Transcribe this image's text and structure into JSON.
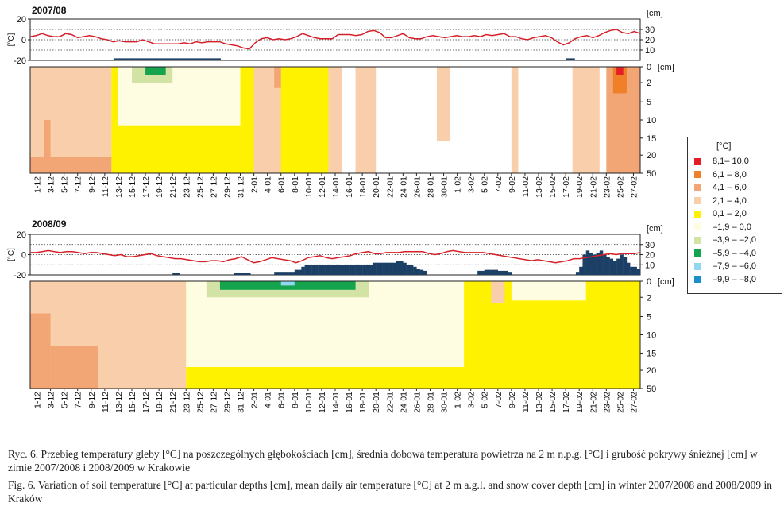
{
  "panels": [
    {
      "title": "2007/08",
      "air_temp": [
        3,
        4,
        6,
        4,
        3,
        3,
        6,
        5,
        2,
        3,
        4,
        3,
        1,
        0,
        -2,
        -1,
        -2,
        -2,
        -2,
        0,
        -2,
        -4,
        -4,
        -4,
        -4,
        -4,
        -3,
        -4,
        -2,
        -3,
        -2,
        -2,
        -2,
        -4,
        -5,
        -6,
        -8,
        -9,
        -3,
        1,
        2,
        0,
        1,
        0,
        1,
        3,
        6,
        4,
        2,
        1,
        1,
        1,
        5,
        5,
        5,
        4,
        5,
        8,
        9,
        7,
        2,
        2,
        4,
        6,
        2,
        1,
        1,
        3,
        4,
        3,
        2,
        3,
        4,
        3,
        3,
        4,
        3,
        5,
        4,
        5,
        6,
        3,
        3,
        1,
        0,
        2,
        3,
        4,
        2,
        -2,
        -5,
        -3,
        1,
        3,
        4,
        2,
        4,
        7,
        9,
        10,
        7,
        6,
        8,
        6
      ],
      "snow_cm": [
        0,
        0,
        0,
        0,
        0,
        0,
        0,
        0,
        0,
        0,
        0,
        0,
        0,
        0,
        0,
        0,
        0,
        0,
        0,
        0,
        0,
        0,
        0,
        0,
        0,
        0,
        0,
        0,
        2,
        2,
        2,
        2,
        2,
        2,
        2,
        2,
        2,
        2,
        2,
        2,
        2,
        2,
        2,
        2,
        2,
        2,
        2,
        2,
        2,
        2,
        2,
        2,
        2,
        2,
        2,
        2,
        2,
        2,
        2,
        2,
        2,
        2,
        2,
        2,
        0,
        0,
        0,
        0,
        0,
        0,
        0,
        0,
        0,
        0,
        0,
        0,
        0,
        0,
        0,
        0,
        0,
        0,
        0,
        0,
        0,
        0,
        0,
        0,
        0,
        0,
        0,
        0,
        0,
        0,
        0,
        0,
        0,
        0,
        0,
        0,
        0,
        0,
        0,
        0,
        0,
        0,
        0,
        0,
        0,
        0,
        0,
        0,
        0,
        0,
        0,
        0,
        0,
        0,
        0,
        0,
        0,
        0,
        0,
        0,
        0,
        0,
        0,
        0,
        0,
        0,
        0,
        0,
        0,
        0,
        0,
        0,
        0,
        0,
        0,
        0,
        0,
        0,
        0,
        0,
        0,
        0,
        0,
        0,
        0,
        0,
        0,
        0,
        0,
        0,
        0,
        0,
        0,
        0,
        0,
        0,
        0,
        0,
        0,
        0,
        0,
        0,
        0,
        0,
        0,
        0,
        0,
        0,
        0,
        0,
        0,
        0,
        0,
        0,
        0,
        0,
        2,
        2,
        2,
        0,
        0,
        0,
        0,
        0,
        0,
        0,
        0,
        0,
        0,
        0,
        0,
        0,
        0,
        0,
        0,
        0,
        0,
        0,
        0,
        0,
        0
      ]
    },
    {
      "title": "2008/09",
      "air_temp": [
        2,
        2,
        3,
        4,
        3,
        2,
        3,
        3,
        2,
        1,
        2,
        2,
        1,
        0,
        -1,
        0,
        -2,
        -2,
        -1,
        0,
        1,
        -1,
        -2,
        -3,
        -4,
        -4,
        -5,
        -6,
        -7,
        -7,
        -6,
        -6,
        -7,
        -5,
        -4,
        -2,
        -5,
        -8,
        -7,
        -5,
        -3,
        -4,
        -5,
        -6,
        -8,
        -6,
        -3,
        -2,
        -1,
        -3,
        -4,
        -3,
        -2,
        -1,
        1,
        2,
        3,
        1,
        1,
        2,
        2,
        2,
        3,
        3,
        3,
        3,
        1,
        0,
        1,
        3,
        4,
        3,
        2,
        2,
        2,
        2,
        1,
        0,
        -1,
        -2,
        -3,
        -4,
        -5,
        -6,
        -5,
        -6,
        -7,
        -8,
        -7,
        -6,
        -4,
        -4,
        -3,
        -2,
        -1,
        0,
        1,
        0,
        1,
        1,
        1,
        2
      ],
      "snow_cm": [
        0,
        0,
        0,
        0,
        0,
        0,
        0,
        0,
        0,
        0,
        0,
        0,
        0,
        0,
        0,
        0,
        0,
        0,
        0,
        0,
        0,
        0,
        0,
        0,
        0,
        0,
        0,
        0,
        0,
        0,
        0,
        0,
        0,
        0,
        0,
        0,
        0,
        0,
        0,
        0,
        0,
        0,
        2,
        2,
        0,
        0,
        0,
        0,
        0,
        0,
        0,
        0,
        0,
        0,
        0,
        0,
        0,
        0,
        0,
        0,
        2,
        2,
        2,
        2,
        2,
        0,
        0,
        0,
        0,
        0,
        0,
        0,
        3,
        3,
        3,
        3,
        3,
        3,
        5,
        5,
        8,
        10,
        10,
        10,
        10,
        10,
        10,
        10,
        10,
        10,
        10,
        10,
        10,
        10,
        10,
        10,
        10,
        10,
        10,
        10,
        10,
        12,
        12,
        12,
        12,
        12,
        12,
        12,
        14,
        14,
        12,
        10,
        10,
        8,
        6,
        5,
        4,
        0,
        0,
        0,
        0,
        0,
        0,
        0,
        0,
        0,
        0,
        0,
        0,
        0,
        0,
        0,
        4,
        4,
        5,
        5,
        5,
        5,
        4,
        4,
        4,
        3,
        0,
        0,
        0,
        0,
        0,
        0,
        0,
        0,
        0,
        0,
        0,
        0,
        0,
        0,
        0,
        0,
        0,
        0,
        0,
        3,
        8,
        20,
        24,
        22,
        20,
        22,
        24,
        20,
        18,
        16,
        14,
        16,
        20,
        18,
        12,
        8,
        8,
        6
      ]
    }
  ],
  "axes": {
    "temp_ticks": [
      "20",
      "0",
      "-20"
    ],
    "temp_label": "[°C]",
    "snow_ticks": [
      "30",
      "20",
      "10"
    ],
    "snow_unit": "[cm]",
    "depth_ticks": [
      "0",
      "2",
      "5",
      "10",
      "15",
      "20",
      "50"
    ],
    "depth_unit": "[cm]",
    "date_labels": [
      "1-12",
      "3-12",
      "5-12",
      "7-12",
      "9-12",
      "11-12",
      "13-12",
      "15-12",
      "17-12",
      "19-12",
      "21-12",
      "23-12",
      "25-12",
      "27-12",
      "29-12",
      "31-12",
      "2-01",
      "4-01",
      "6-01",
      "8-01",
      "10-01",
      "12-01",
      "14-01",
      "16-01",
      "18-01",
      "20-01",
      "22-01",
      "24-01",
      "26-01",
      "28-01",
      "30-01",
      "1-02",
      "3-02",
      "5-02",
      "7-02",
      "9-02",
      "11-02",
      "13-02",
      "15-02",
      "17-02",
      "19-02",
      "21-02",
      "23-02",
      "25-02",
      "27-02"
    ]
  },
  "legend": {
    "title": "[°C]",
    "entries": [
      {
        "label": "8,1– 10,0",
        "color": "#e31e24"
      },
      {
        "label": "6,1 – 8,0",
        "color": "#f07f2a"
      },
      {
        "label": "4,1 – 6,0",
        "color": "#f3a675"
      },
      {
        "label": "2,1 – 4,0",
        "color": "#f8ceab"
      },
      {
        "label": "0,1 – 2,0",
        "color": "#fff200"
      },
      {
        "label": "–1,9 – 0,0",
        "color": "#fffde1"
      },
      {
        "label": "–3,9 – –2,0",
        "color": "#d3e3a5"
      },
      {
        "label": "–5,9 – –4,0",
        "color": "#16a34d"
      },
      {
        "label": "–7,9 – –6,0",
        "color": "#8fd8f0"
      },
      {
        "label": "–9,9 – –8,0",
        "color": "#1b8fc9"
      }
    ]
  },
  "colors": {
    "air_line": "#d62029",
    "snow_bar": "#1c3f66"
  },
  "chart_data": [
    {
      "type": "heatmap",
      "title": "2007/08",
      "x_label_ticks": [
        "1-12",
        "3-12",
        "5-12",
        "7-12",
        "9-12",
        "11-12",
        "13-12",
        "15-12",
        "17-12",
        "19-12",
        "21-12",
        "23-12",
        "25-12",
        "27-12",
        "29-12",
        "31-12",
        "2-01",
        "4-01",
        "6-01",
        "8-01",
        "10-01",
        "12-01",
        "14-01",
        "16-01",
        "18-01",
        "20-01",
        "22-01",
        "24-01",
        "26-01",
        "28-01",
        "30-01",
        "1-02",
        "3-02",
        "5-02",
        "7-02",
        "9-02",
        "11-02",
        "13-02",
        "15-02",
        "17-02",
        "19-02",
        "21-02",
        "23-02",
        "25-02",
        "27-02"
      ],
      "y_depth_cm": [
        0,
        2,
        5,
        10,
        15,
        20,
        50
      ],
      "temp_axis_ylim": [
        -20,
        20
      ],
      "snow_axis_ylim": [
        0,
        40
      ],
      "soil_regions_depth_0_to_1": [
        {
          "range": "2,1 – 4,0",
          "band": [
            0,
            6
          ],
          "depth": [
            0,
            0.95
          ]
        },
        {
          "range": "2,1 – 4,0",
          "band": [
            6,
            12
          ],
          "depth": [
            0,
            0.9
          ]
        },
        {
          "range": "4,1 – 6,0",
          "band": [
            2,
            3
          ],
          "depth": [
            0.5,
            0.9
          ]
        },
        {
          "range": "4,1 – 6,0",
          "band": [
            0,
            12
          ],
          "depth": [
            0.85,
            1
          ]
        },
        {
          "range": "0,1 – 2,0",
          "band": [
            12,
            44
          ],
          "depth": [
            0,
            1
          ]
        },
        {
          "range": "–1,9 – 0,0",
          "band": [
            13,
            31
          ],
          "depth": [
            0,
            0.55
          ]
        },
        {
          "range": "–3,9 – –2,0",
          "band": [
            15,
            21
          ],
          "depth": [
            0,
            0.15
          ]
        },
        {
          "range": "–5,9 – –4,0",
          "band": [
            17,
            20
          ],
          "depth": [
            0,
            0.08
          ]
        },
        {
          "range": "2,1 – 4,0",
          "band": [
            33,
            37
          ],
          "depth": [
            0,
            1
          ]
        },
        {
          "range": "4,1 – 6,0",
          "band": [
            36,
            37
          ],
          "depth": [
            0,
            0.2
          ]
        },
        {
          "range": "2,1 – 4,0",
          "band": [
            44,
            46
          ],
          "depth": [
            0,
            1
          ]
        },
        {
          "range": "2,1 – 4,0",
          "band": [
            48,
            51
          ],
          "depth": [
            0,
            1
          ]
        },
        {
          "range": "2,1 – 4,0",
          "band": [
            60,
            62
          ],
          "depth": [
            0,
            0.7
          ]
        },
        {
          "range": "2,1 – 4,0",
          "band": [
            71,
            72
          ],
          "depth": [
            0,
            1
          ]
        },
        {
          "range": "2,1 – 4,0",
          "band": [
            80,
            84
          ],
          "depth": [
            0,
            1
          ]
        },
        {
          "range": "4,1 – 6,0",
          "band": [
            85,
            90
          ],
          "depth": [
            0,
            1
          ]
        },
        {
          "range": "6,1 – 8,0",
          "band": [
            86,
            88
          ],
          "depth": [
            0,
            0.25
          ]
        },
        {
          "range": "8,1– 10,0",
          "band": [
            86.5,
            87.5
          ],
          "depth": [
            0,
            0.08
          ]
        }
      ]
    },
    {
      "type": "heatmap",
      "title": "2008/09",
      "x_label_ticks": [
        "1-12",
        "3-12",
        "5-12",
        "7-12",
        "9-12",
        "11-12",
        "13-12",
        "15-12",
        "17-12",
        "19-12",
        "21-12",
        "23-12",
        "25-12",
        "27-12",
        "29-12",
        "31-12",
        "2-01",
        "4-01",
        "6-01",
        "8-01",
        "10-01",
        "12-01",
        "14-01",
        "16-01",
        "18-01",
        "20-01",
        "22-01",
        "24-01",
        "26-01",
        "28-01",
        "30-01",
        "1-02",
        "3-02",
        "5-02",
        "7-02",
        "9-02",
        "11-02",
        "13-02",
        "15-02",
        "17-02",
        "19-02",
        "21-02",
        "23-02",
        "25-02",
        "27-02"
      ],
      "y_depth_cm": [
        0,
        2,
        5,
        10,
        15,
        20,
        50
      ],
      "temp_axis_ylim": [
        -20,
        20
      ],
      "snow_axis_ylim": [
        0,
        40
      ],
      "soil_regions_depth_0_to_1": [
        {
          "range": "2,1 – 4,0",
          "band": [
            0,
            23
          ],
          "depth": [
            0,
            1
          ]
        },
        {
          "range": "4,1 – 6,0",
          "band": [
            0,
            3
          ],
          "depth": [
            0.3,
            1
          ]
        },
        {
          "range": "4,1 – 6,0",
          "band": [
            3,
            10
          ],
          "depth": [
            0.6,
            1
          ]
        },
        {
          "range": "0,1 – 2,0",
          "band": [
            23,
            90
          ],
          "depth": [
            0,
            1
          ]
        },
        {
          "range": "–1,9 – 0,0",
          "band": [
            23,
            64
          ],
          "depth": [
            0,
            0.8
          ]
        },
        {
          "range": "–1,9 – 0,0",
          "band": [
            71,
            82
          ],
          "depth": [
            0,
            0.18
          ]
        },
        {
          "range": "–3,9 – –2,0",
          "band": [
            26,
            50
          ],
          "depth": [
            0,
            0.15
          ]
        },
        {
          "range": "–5,9 – –4,0",
          "band": [
            28,
            48
          ],
          "depth": [
            0,
            0.08
          ]
        },
        {
          "range": "–7,9 – –6,0",
          "band": [
            37,
            39
          ],
          "depth": [
            0,
            0.04
          ]
        },
        {
          "range": "2,1 – 4,0",
          "band": [
            68,
            70
          ],
          "depth": [
            0,
            0.2
          ]
        }
      ]
    }
  ],
  "caption": {
    "pl": "Ryc. 6. Przebieg temperatury gleby [°C] na poszczególnych głębokościach [cm], średnia dobowa temperatura powietrza na 2 m n.p.g. [°C] i grubość pokrywy śnieżnej [cm] w zimie 2007/2008 i 2008/2009 w Krakowie",
    "en": "Fig. 6. Variation of soil temperature [°C] at particular depths [cm], mean daily air temperature [°C] at 2 m a.g.l. and snow cover depth [cm] in winter 2007/2008 and 2008/2009 in Kraków"
  }
}
